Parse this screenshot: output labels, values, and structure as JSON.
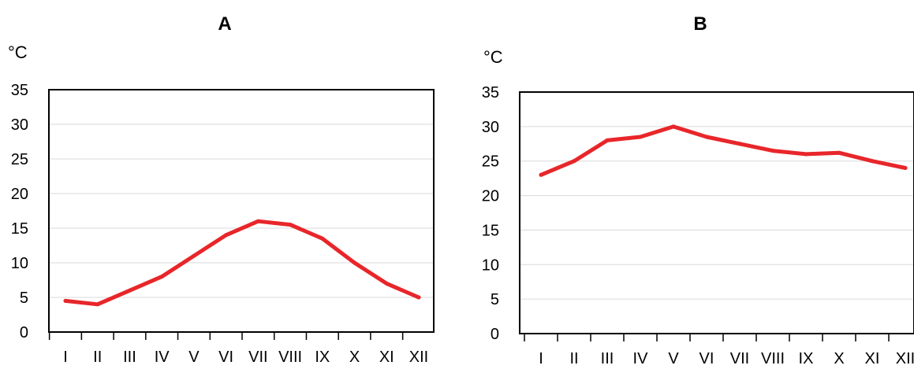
{
  "chart_data": [
    {
      "type": "line",
      "title": "A",
      "ylabel": "°C",
      "xlabel": "",
      "categories": [
        "I",
        "II",
        "III",
        "IV",
        "V",
        "VI",
        "VII",
        "VIII",
        "IX",
        "X",
        "XI",
        "XII"
      ],
      "values": [
        4.5,
        4,
        6,
        8,
        11,
        14,
        16,
        15.5,
        13.5,
        10,
        7,
        5
      ],
      "ylim": [
        0,
        35
      ],
      "yticks": [
        "0",
        "5",
        "10",
        "15",
        "20",
        "25",
        "30",
        "35"
      ],
      "grid": true,
      "line_color": "#e8262a"
    },
    {
      "type": "line",
      "title": "B",
      "ylabel": "°C",
      "xlabel": "",
      "categories": [
        "I",
        "II",
        "III",
        "IV",
        "V",
        "VI",
        "VII",
        "VIII",
        "IX",
        "X",
        "XI",
        "XII"
      ],
      "values": [
        23,
        25,
        28,
        28.5,
        30,
        28.5,
        27.5,
        26.5,
        26,
        26.2,
        25,
        24
      ],
      "ylim": [
        0,
        35
      ],
      "yticks": [
        "0",
        "5",
        "10",
        "15",
        "20",
        "25",
        "30",
        "35"
      ],
      "grid": true,
      "line_color": "#e8262a"
    }
  ]
}
